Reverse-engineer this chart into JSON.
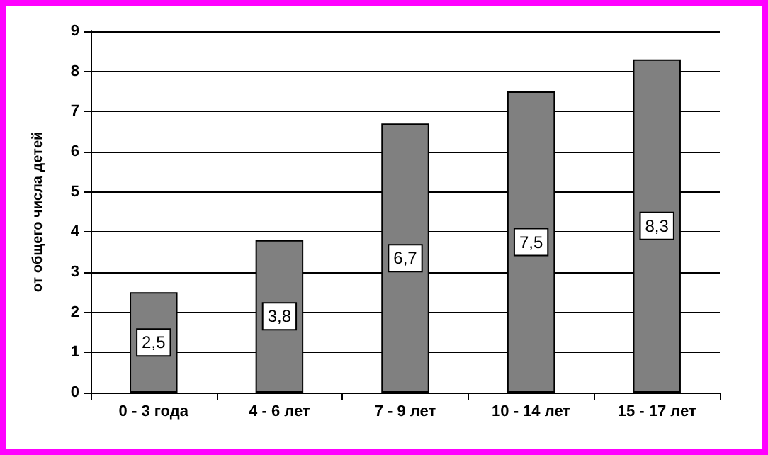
{
  "chart_data": {
    "type": "bar",
    "ylabel": "от общего числа детей",
    "categories": [
      "0 - 3 года",
      "4 - 6 лет",
      "7 - 9 лет",
      "10 - 14 лет",
      "15 - 17 лет"
    ],
    "values": [
      2.5,
      3.8,
      6.7,
      7.5,
      8.3
    ],
    "color": "#808080",
    "value_labels": [
      "2,5",
      "3,8",
      "6,7",
      "7,5",
      "8,3"
    ],
    "ylim": [
      0,
      9
    ],
    "yticks": [
      0,
      1,
      2,
      3,
      4,
      5,
      6,
      7,
      8,
      9
    ],
    "grid": "y"
  }
}
